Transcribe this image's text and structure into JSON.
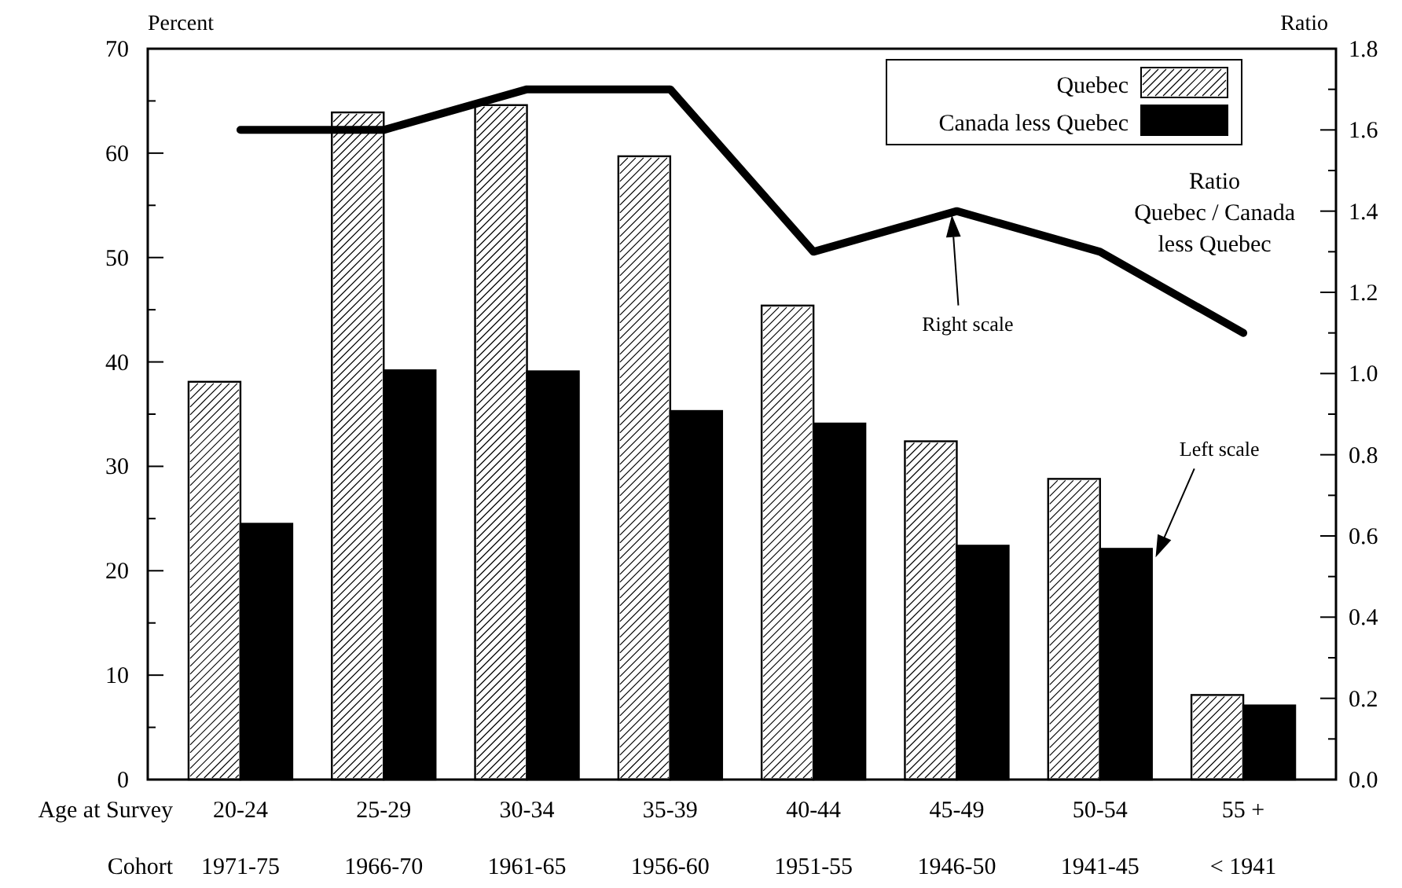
{
  "chart_data": {
    "type": "bar",
    "categories": [
      "20-24",
      "25-29",
      "30-34",
      "35-39",
      "40-44",
      "45-49",
      "50-54",
      "55 +"
    ],
    "xlabel": "Age at Survey",
    "ylabel": "Percent",
    "y2label": "Ratio",
    "ylim": [
      0,
      70
    ],
    "yticks": [
      0,
      {
        "value": 5,
        "label": null
      },
      10,
      {
        "value": 15,
        "label": null
      },
      20,
      {
        "value": 25,
        "label": null
      },
      30,
      {
        "value": 35,
        "label": null
      },
      40,
      {
        "value": 45,
        "label": null
      },
      50,
      {
        "value": 55,
        "label": null
      },
      60,
      {
        "value": 65,
        "label": null
      },
      70
    ],
    "y2lim": [
      0,
      1.8
    ],
    "y2ticks": [
      {
        "value": 0,
        "label": "0.0"
      },
      {
        "value": 0.1,
        "label": null
      },
      {
        "value": 0.2,
        "label": "0.2"
      },
      {
        "value": 0.3,
        "label": null
      },
      {
        "value": 0.4,
        "label": "0.4"
      },
      {
        "value": 0.5,
        "label": null
      },
      {
        "value": 0.6,
        "label": "0.6"
      },
      {
        "value": 0.7,
        "label": null
      },
      {
        "value": 0.8,
        "label": "0.8"
      },
      {
        "value": 0.9,
        "label": null
      },
      {
        "value": 1.0,
        "label": "1.0"
      },
      {
        "value": 1.1,
        "label": null
      },
      {
        "value": 1.2,
        "label": "1.2"
      },
      {
        "value": 1.3,
        "label": null
      },
      {
        "value": 1.4,
        "label": "1.4"
      },
      {
        "value": 1.5,
        "label": null
      },
      {
        "value": 1.6,
        "label": "1.6"
      },
      {
        "value": 1.7,
        "label": null
      },
      {
        "value": 1.8,
        "label": "1.8"
      }
    ],
    "legend": "top right",
    "grid": false,
    "series": [
      {
        "name": "Quebec",
        "color": "#ffffff",
        "values": [
          38.1,
          63.9,
          64.6,
          59.7,
          45.4,
          32.4,
          28.8,
          8.1
        ]
      },
      {
        "name": "Canada less Quebec",
        "color": "#000000",
        "values": [
          24.5,
          39.2,
          39.1,
          35.3,
          34.1,
          22.4,
          22.1,
          7.1
        ]
      },
      {
        "name": "Ratio\nQuebec / Canada\nless Quebec",
        "type": "line",
        "axis": "y2",
        "color": "#000000",
        "line_style": "solid",
        "marker": "none",
        "values": [
          1.6,
          1.6,
          1.7,
          1.7,
          1.3,
          1.4,
          1.3,
          1.1
        ]
      }
    ],
    "annotations": [
      "Right scale",
      "Left scale",
      "Cohort",
      "1971-75",
      "1966-70",
      "1961-65",
      "1956-60",
      "1951-55",
      "1946-50",
      "1941-45",
      "< 1941"
    ]
  }
}
